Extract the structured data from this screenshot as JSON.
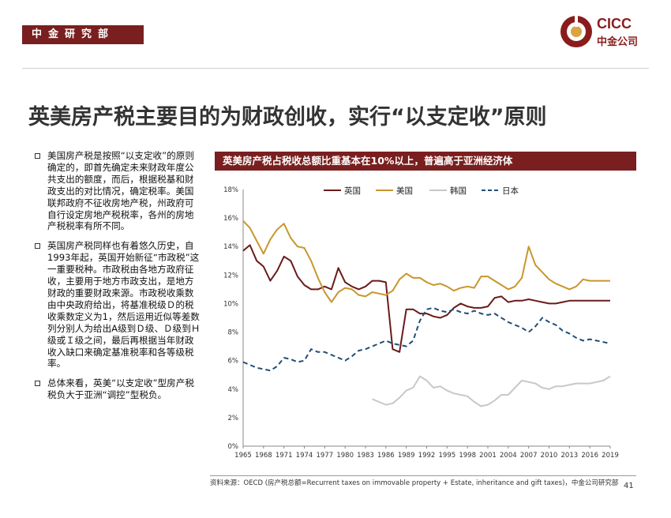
{
  "header": {
    "department": "中金研究部",
    "logo_en": "CICC",
    "logo_cn": "中金公司"
  },
  "title": "英美房产税主要目的为财政创收，实行“以支定收”原则",
  "bullets": [
    "美国房产税是按照“以支定收”的原则确定的，即首先确定未来财政年度公共支出的额度，而后，根据税基和财政支出的对比情况，确定税率。美国联邦政府不征收房地产税，州政府可自行设定房地产税税率，各州的房地产税税率有所不同。",
    "英国房产税同样也有着悠久历史，自1993年起，英国开始新征“市政税”这一重要税种。市政税由各地方政府征收，主要用于地方市政支出，是地方财政的重要财政来源。市政税收乘数由中央政府给出，将基准税级Ｄ的税收乘数定义为1，然后运用近似等差数列分别人为给出A级到Ｄ级、Ｄ级到Ｈ级或Ｉ级之间，最后再根据当年财政收入缺口来确定基准税率和各等级税率。",
    "总体来看，英美“以支定收”型房产税税负大于亚洲“调控”型税负。"
  ],
  "chart_banner": "英美房产税占税收总额比重基本在10%以上，普遍高于亚洲经济体",
  "chart_data": {
    "type": "line",
    "title": "英美房产税占税收总额比重基本在10%以上，普遍高于亚洲经济体",
    "xlabel": "",
    "ylabel": "",
    "x": [
      1965,
      1966,
      1967,
      1968,
      1969,
      1970,
      1971,
      1972,
      1973,
      1974,
      1975,
      1976,
      1977,
      1978,
      1979,
      1980,
      1981,
      1982,
      1983,
      1984,
      1985,
      1986,
      1987,
      1988,
      1989,
      1990,
      1991,
      1992,
      1993,
      1994,
      1995,
      1996,
      1997,
      1998,
      1999,
      2000,
      2001,
      2002,
      2003,
      2004,
      2005,
      2006,
      2007,
      2008,
      2009,
      2010,
      2011,
      2012,
      2013,
      2014,
      2015,
      2016,
      2017,
      2018,
      2019
    ],
    "xticks": [
      "1965",
      "1968",
      "1971",
      "1974",
      "1977",
      "1980",
      "1983",
      "1986",
      "1989",
      "1992",
      "1995",
      "1998",
      "2001",
      "2004",
      "2007",
      "2010",
      "2013",
      "2016",
      "2019"
    ],
    "yticks": [
      "0%",
      "2%",
      "4%",
      "6%",
      "8%",
      "10%",
      "12%",
      "14%",
      "16%",
      "18%"
    ],
    "ylim": [
      0,
      18
    ],
    "legend_position": "top",
    "series": [
      {
        "name": "英国",
        "color": "#6b1a1a",
        "dash": "solid",
        "values": [
          13.7,
          14.1,
          13.0,
          12.6,
          11.6,
          12.3,
          13.3,
          13.0,
          11.9,
          11.3,
          11.0,
          11.0,
          11.2,
          11.0,
          12.5,
          11.5,
          11.2,
          11.0,
          11.2,
          11.6,
          11.6,
          11.5,
          6.8,
          6.6,
          9.6,
          9.6,
          9.3,
          9.3,
          9.1,
          9.0,
          9.2,
          9.7,
          10.0,
          9.8,
          9.7,
          9.7,
          9.8,
          10.4,
          10.5,
          10.1,
          10.2,
          10.2,
          10.3,
          10.2,
          10.1,
          10.0,
          10.0,
          10.1,
          10.2,
          10.2,
          10.2,
          10.2,
          10.2,
          10.2,
          10.2
        ]
      },
      {
        "name": "美国",
        "color": "#c8962e",
        "dash": "solid",
        "values": [
          15.8,
          15.3,
          14.4,
          13.5,
          14.5,
          15.2,
          15.6,
          14.6,
          14.0,
          13.9,
          13.0,
          11.8,
          10.8,
          10.1,
          10.8,
          11.1,
          11.0,
          10.6,
          10.5,
          10.8,
          10.7,
          10.6,
          10.9,
          11.7,
          12.1,
          11.8,
          11.8,
          11.5,
          11.3,
          11.4,
          11.2,
          10.9,
          11.1,
          11.2,
          11.1,
          11.9,
          11.9,
          11.6,
          11.3,
          11.0,
          11.2,
          11.8,
          14.0,
          12.7,
          12.2,
          11.7,
          11.4,
          11.2,
          11.0,
          11.2,
          11.7,
          11.6,
          11.6,
          11.6,
          11.6
        ]
      },
      {
        "name": "韩国",
        "color": "#c8c8c8",
        "dash": "solid",
        "values": [
          null,
          null,
          null,
          null,
          null,
          null,
          null,
          null,
          null,
          null,
          null,
          null,
          null,
          null,
          null,
          null,
          null,
          null,
          null,
          3.3,
          3.1,
          2.9,
          3.0,
          3.4,
          3.9,
          4.1,
          4.9,
          4.6,
          4.1,
          4.2,
          3.9,
          3.7,
          3.6,
          3.5,
          3.1,
          2.8,
          2.9,
          3.2,
          3.6,
          3.6,
          4.1,
          4.6,
          4.5,
          4.4,
          4.1,
          4.0,
          4.2,
          4.2,
          4.3,
          4.4,
          4.4,
          4.4,
          4.5,
          4.6,
          4.9
        ]
      },
      {
        "name": "日本",
        "color": "#1f4e79",
        "dash": "dashed",
        "values": [
          5.9,
          5.7,
          5.5,
          5.4,
          5.3,
          5.6,
          6.2,
          6.1,
          5.9,
          6.0,
          6.8,
          6.6,
          6.6,
          6.4,
          6.2,
          6.0,
          6.3,
          6.7,
          6.8,
          7.0,
          7.2,
          7.4,
          7.2,
          7.1,
          7.0,
          7.4,
          8.8,
          9.6,
          9.7,
          9.5,
          9.4,
          9.6,
          9.4,
          9.3,
          9.5,
          9.3,
          9.2,
          9.3,
          9.0,
          8.7,
          8.5,
          8.3,
          8.0,
          8.4,
          9.0,
          8.7,
          8.5,
          8.1,
          7.9,
          7.6,
          7.4,
          7.5,
          7.4,
          7.3,
          7.2
        ]
      }
    ]
  },
  "source_note": "资料来源：OECD (房产税总额=Recurrent taxes on immovable property + Estate, inheritance and gift taxes)，中金公司研究部",
  "page_number": "41"
}
